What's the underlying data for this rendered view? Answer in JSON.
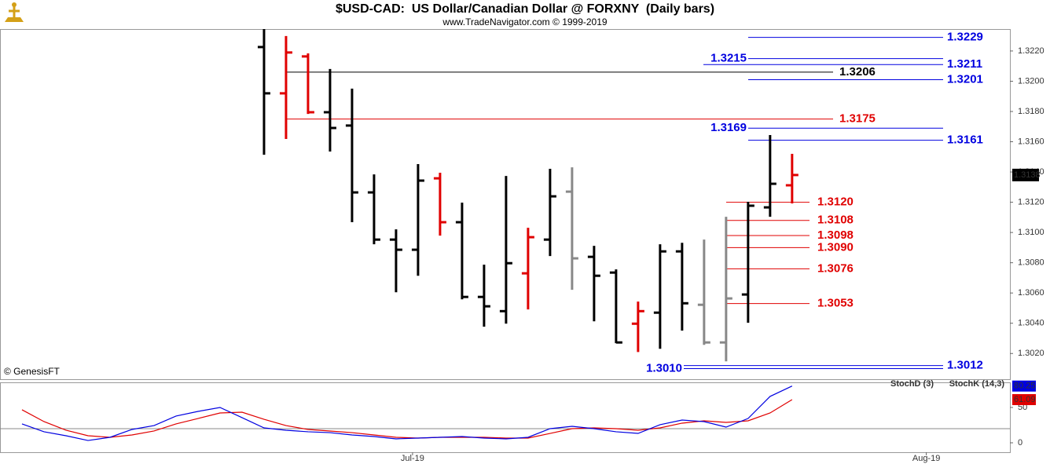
{
  "chart_data": [
    {
      "type": "ohlc",
      "title": "$USD-CAD:  US Dollar/Canadian Dollar @ FORXNY  (Daily bars)",
      "subtitle": "www.TradeNavigator.com © 1999-2019",
      "copyright": "© GenesisFT",
      "open": [
        null,
        null,
        null,
        null,
        null,
        null,
        null,
        null,
        null,
        null,
        null,
        1.32226,
        1.3192,
        1.32164,
        1.31795,
        1.31707,
        1.31265,
        1.30953,
        1.30886,
        1.31358,
        1.31068,
        1.30574,
        1.3048,
        1.3073,
        1.30953,
        1.3127,
        1.30839,
        1.30735,
        1.30397,
        1.3047,
        1.30875,
        1.30522,
        1.30273,
        1.3059,
        1.31166,
        1.31312
      ],
      "high": [
        null,
        null,
        null,
        null,
        null,
        null,
        null,
        null,
        null,
        null,
        null,
        1.32345,
        1.32299,
        1.32184,
        1.32081,
        1.31951,
        1.31384,
        1.31021,
        1.31452,
        1.31395,
        1.31197,
        1.30787,
        1.31374,
        1.31031,
        1.31421,
        1.31431,
        1.30912,
        1.30756,
        1.30543,
        1.30922,
        1.30932,
        1.30953,
        1.31104,
        1.31203,
        1.31644,
        1.3152
      ],
      "low": [
        null,
        null,
        null,
        null,
        null,
        null,
        null,
        null,
        null,
        null,
        null,
        1.31514,
        1.31618,
        1.31784,
        1.31535,
        1.31068,
        1.30922,
        1.30605,
        1.30714,
        1.30979,
        1.30558,
        1.30377,
        1.30397,
        1.30491,
        1.30844,
        1.30621,
        1.30413,
        1.30268,
        1.3021,
        1.30231,
        1.30351,
        1.30257,
        1.30148,
        1.30403,
        1.31104,
        1.31192
      ],
      "close": [
        null,
        null,
        null,
        null,
        null,
        null,
        null,
        null,
        null,
        null,
        null,
        1.3192,
        1.3219,
        1.31795,
        1.31691,
        1.31265,
        1.30953,
        1.30886,
        1.31343,
        1.31068,
        1.30574,
        1.30512,
        1.30797,
        1.30969,
        1.31239,
        1.30829,
        1.30714,
        1.30273,
        1.3048,
        1.30875,
        1.30532,
        1.30273,
        1.30564,
        1.31177,
        1.31322,
        1.3138
      ],
      "colors": [
        null,
        null,
        null,
        null,
        null,
        null,
        null,
        null,
        null,
        null,
        null,
        "#000000",
        "#e00000",
        "#e00000",
        "#000000",
        "#000000",
        "#000000",
        "#000000",
        "#000000",
        "#e00000",
        "#000000",
        "#000000",
        "#000000",
        "#e00000",
        "#000000",
        "#888888",
        "#000000",
        "#000000",
        "#e00000",
        "#000000",
        "#000000",
        "#888888",
        "#888888",
        "#000000",
        "#000000",
        "#e00000"
      ],
      "xlim": [
        -1,
        44.9
      ],
      "ylim": [
        1.3003,
        1.32345
      ],
      "yticks": [
        {
          "value": 1.302,
          "label": "1.3020"
        },
        {
          "value": 1.304,
          "label": "1.3040"
        },
        {
          "value": 1.306,
          "label": "1.3060"
        },
        {
          "value": 1.308,
          "label": "1.3080"
        },
        {
          "value": 1.31,
          "label": "1.3100"
        },
        {
          "value": 1.312,
          "label": "1.3120"
        },
        {
          "value": 1.314,
          "label": "1.3140"
        },
        {
          "value": 1.316,
          "label": "1.3160"
        },
        {
          "value": 1.318,
          "label": "1.3180"
        },
        {
          "value": 1.32,
          "label": "1.3200"
        },
        {
          "value": 1.322,
          "label": "1.3220"
        }
      ],
      "levels": [
        {
          "value": 1.3229,
          "label": "1.3229",
          "color": "#0000e0"
        },
        {
          "value": 1.3215,
          "label": "1.3215",
          "color": "#0000e0"
        },
        {
          "value": 1.3211,
          "label": "1.3211",
          "color": "#0000e0"
        },
        {
          "value": 1.3206,
          "label": "1.3206",
          "color": "#000000"
        },
        {
          "value": 1.3201,
          "label": "1.3201",
          "color": "#0000e0"
        },
        {
          "value": 1.3175,
          "label": "1.3175",
          "color": "#e00000"
        },
        {
          "value": 1.3169,
          "label": "1.3169",
          "color": "#0000e0"
        },
        {
          "value": 1.3161,
          "label": "1.3161",
          "color": "#0000e0"
        },
        {
          "value": 1.312,
          "label": "1.3120",
          "color": "#e00000"
        },
        {
          "value": 1.3108,
          "label": "1.3108",
          "color": "#e00000"
        },
        {
          "value": 1.3098,
          "label": "1.3098",
          "color": "#e00000"
        },
        {
          "value": 1.309,
          "label": "1.3090",
          "color": "#e00000"
        },
        {
          "value": 1.3076,
          "label": "1.3076",
          "color": "#e00000"
        },
        {
          "value": 1.3053,
          "label": "1.3053",
          "color": "#e00000"
        },
        {
          "value": 1.3012,
          "label": "1.3012",
          "color": "#0000e0"
        },
        {
          "value": 1.301,
          "label": "1.3010",
          "color": "#0000e0"
        }
      ]
    },
    {
      "type": "line",
      "series": [
        {
          "name": "StochD (3)",
          "color": "#e00000",
          "values": [
            46.7,
            30,
            17.8,
            10,
            7.8,
            11.1,
            16.7,
            26.7,
            34.4,
            42.2,
            43.3,
            33.3,
            24.4,
            18.9,
            16.7,
            14.4,
            11.1,
            7.8,
            6.7,
            7.8,
            7.8,
            7.8,
            6.7,
            6.7,
            13.3,
            20,
            21.1,
            20,
            17.8,
            21.1,
            27.8,
            31.1,
            28.9,
            31.1,
            42.2,
            61.09
          ]
        },
        {
          "name": "StochK (14,3)",
          "color": "#0000e0",
          "values": [
            26.7,
            15.6,
            10,
            3.3,
            7.8,
            18.9,
            24.4,
            37.8,
            44.4,
            50,
            35.6,
            21.1,
            17.8,
            15.6,
            14.4,
            11.1,
            8.9,
            5.6,
            6.7,
            7.8,
            8.9,
            6.7,
            5.6,
            7.8,
            20,
            23.3,
            20,
            15.6,
            13.3,
            25.6,
            32.2,
            30,
            22.2,
            34.4,
            65.6,
            80.25
          ]
        }
      ],
      "xlim": [
        -1,
        44.9
      ],
      "xticks": [
        {
          "value": 17.75,
          "label": "Jul-19"
        },
        {
          "value": 41.1,
          "label": "Aug-19"
        }
      ],
      "ylim": [
        -12.2,
        85.5
      ],
      "yticks": [
        0,
        50
      ],
      "reference_lines": [
        20
      ]
    }
  ]
}
